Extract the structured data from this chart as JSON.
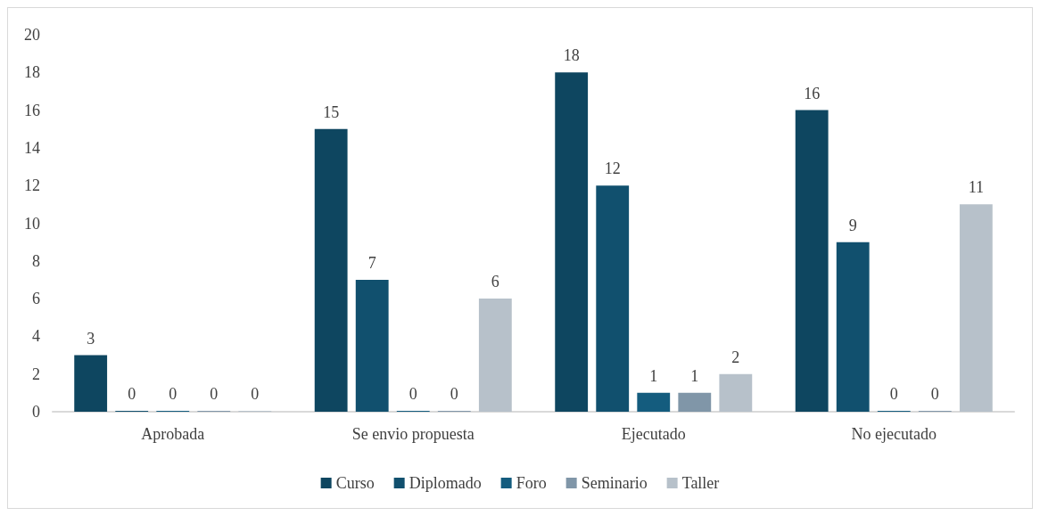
{
  "chart_data": {
    "type": "bar",
    "categories": [
      "Aprobada",
      "Se envio propuesta",
      "Ejecutado",
      "No ejecutado"
    ],
    "series": [
      {
        "name": "Curso",
        "color": "#0e4660",
        "values": [
          3,
          15,
          18,
          16
        ]
      },
      {
        "name": "Diplomado",
        "color": "#11506e",
        "values": [
          0,
          7,
          12,
          9
        ]
      },
      {
        "name": "Foro",
        "color": "#145c7e",
        "values": [
          0,
          0,
          1,
          0
        ]
      },
      {
        "name": "Seminario",
        "color": "#8096a8",
        "values": [
          0,
          0,
          1,
          0
        ]
      },
      {
        "name": "Taller",
        "color": "#b7c1ca",
        "values": [
          0,
          6,
          2,
          11
        ]
      }
    ],
    "ylim": [
      0,
      20
    ],
    "yticks": [
      0,
      2,
      4,
      6,
      8,
      10,
      12,
      14,
      16,
      18,
      20
    ],
    "grid": false,
    "legend": "bottom",
    "data_labels": true
  }
}
